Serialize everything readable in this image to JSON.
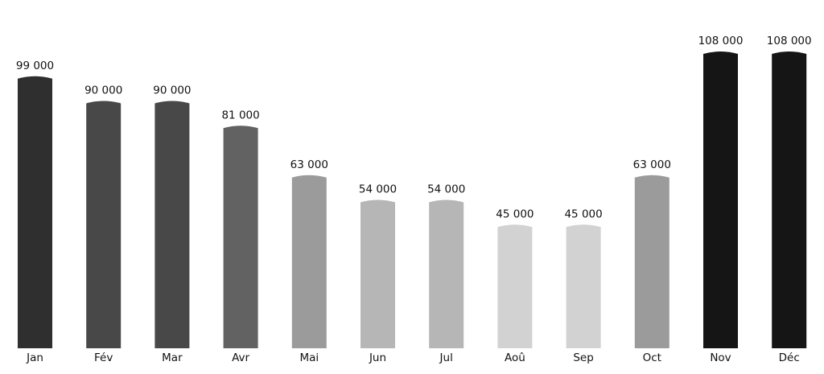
{
  "chart_data": {
    "type": "bar",
    "categories": [
      "Jan",
      "Fév",
      "Mar",
      "Avr",
      "Mai",
      "Jun",
      "Jul",
      "Aoû",
      "Sep",
      "Oct",
      "Nov",
      "Déc"
    ],
    "values": [
      99000,
      90000,
      90000,
      81000,
      63000,
      54000,
      54000,
      45000,
      45000,
      63000,
      108000,
      108000
    ],
    "value_labels": [
      "99 000",
      "90 000",
      "90 000",
      "81 000",
      "63 000",
      "54 000",
      "54 000",
      "45 000",
      "45 000",
      "63 000",
      "108 000",
      "108 000"
    ],
    "bar_colors": [
      "#2f2f2f",
      "#484848",
      "#484848",
      "#626262",
      "#9b9b9b",
      "#b6b6b6",
      "#b6b6b6",
      "#d2d2d2",
      "#d2d2d2",
      "#9b9b9b",
      "#151515",
      "#151515"
    ],
    "title": "",
    "xlabel": "",
    "ylabel": "",
    "ylim": [
      0,
      108000
    ],
    "grid": false,
    "legend": "none"
  }
}
